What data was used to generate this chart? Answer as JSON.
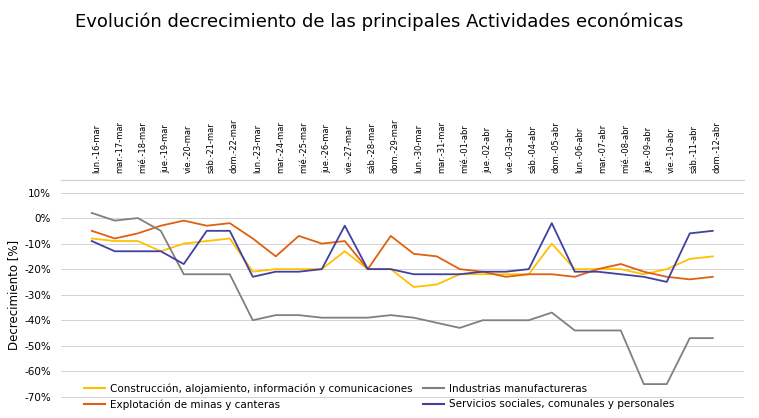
{
  "title": "Evolución decrecimiento de las principales Actividades económicas",
  "ylabel": "Decrecimiento [%]",
  "x_labels": [
    "lun.-16-mar",
    "mar.-17-mar",
    "mié.-18-mar",
    "jue.-19-mar",
    "vie.-20-mar",
    "sáb.-21-mar",
    "dom.-22-mar",
    "lun.-23-mar",
    "mar.-24-mar",
    "mié.-25-mar",
    "jue.-26-mar",
    "vie.-27-mar",
    "sáb.-28-mar",
    "dom.-29-mar",
    "lun.-30-mar",
    "mar.-31-mar",
    "mié.-01-abr",
    "jue.-02-abr",
    "vie.-03-abr",
    "sáb.-04-abr",
    "dom.-05-abr",
    "lun.-06-abr",
    "mar.-07-abr",
    "mié.-08-abr",
    "jue.-09-abr",
    "vie.-10-abr",
    "sáb.-11-abr",
    "dom.-12-abr"
  ],
  "series": {
    "Construcción, alojamiento, información y comunicaciones": {
      "color": "#FFC000",
      "values": [
        -8,
        -9,
        -9,
        -13,
        -10,
        -9,
        -8,
        -21,
        -20,
        -20,
        -20,
        -13,
        -20,
        -20,
        -27,
        -26,
        -22,
        -22,
        -22,
        -22,
        -10,
        -20,
        -20,
        -20,
        -22,
        -20,
        -16,
        -15
      ]
    },
    "Explotación de minas y canteras": {
      "color": "#E06010",
      "values": [
        -5,
        -8,
        -6,
        -3,
        -1,
        -3,
        -2,
        -8,
        -15,
        -7,
        -10,
        -9,
        -20,
        -7,
        -14,
        -15,
        -20,
        -21,
        -23,
        -22,
        -22,
        -23,
        -20,
        -18,
        -21,
        -23,
        -24,
        -23
      ]
    },
    "Industrias manufactureras": {
      "color": "#808080",
      "values": [
        2,
        -1,
        0,
        -5,
        -22,
        -22,
        -22,
        -40,
        -38,
        -38,
        -39,
        -39,
        -39,
        -38,
        -39,
        -41,
        -43,
        -40,
        -40,
        -40,
        -37,
        -44,
        -44,
        -44,
        -65,
        -65,
        -47,
        -47
      ]
    },
    "Servicios sociales, comunales y personales": {
      "color": "#4040A0",
      "values": [
        -9,
        -13,
        -13,
        -13,
        -18,
        -5,
        -5,
        -23,
        -21,
        -21,
        -20,
        -3,
        -20,
        -20,
        -22,
        -22,
        -22,
        -21,
        -21,
        -20,
        -2,
        -21,
        -21,
        -22,
        -23,
        -25,
        -6,
        -5
      ]
    }
  },
  "ylim": [
    -75,
    15
  ],
  "yticks": [
    10,
    0,
    -10,
    -20,
    -30,
    -40,
    -50,
    -60,
    -70
  ],
  "ytick_labels": [
    "10%",
    "0%",
    "-10%",
    "-20%",
    "-30%",
    "-40%",
    "-50%",
    "-60%",
    "-70%"
  ],
  "background_color": "#FFFFFF",
  "grid_color": "#CCCCCC",
  "title_fontsize": 13,
  "legend": [
    {
      "label": "Construcción, alojamiento, información y comunicaciones",
      "color": "#FFC000"
    },
    {
      "label": "Explotación de minas y canteras",
      "color": "#E06010"
    },
    {
      "label": "Industrias manufactureras",
      "color": "#808080"
    },
    {
      "label": "Servicios sociales, comunales y personales",
      "color": "#4040A0"
    }
  ]
}
